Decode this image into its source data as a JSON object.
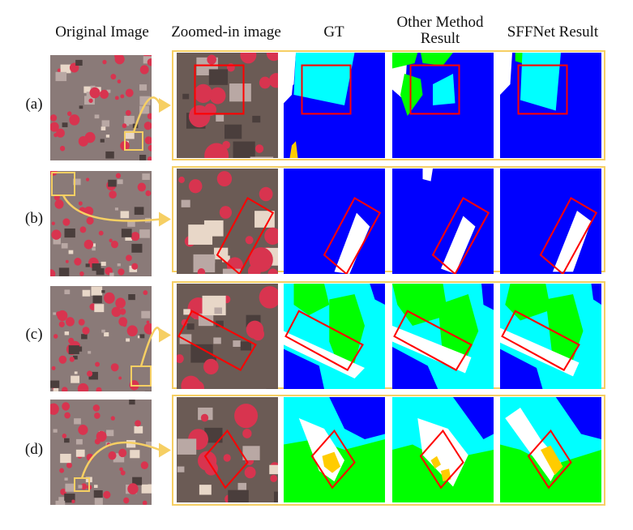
{
  "headers": {
    "original": "Original Image",
    "zoomed": "Zoomed-in image",
    "gt": "GT",
    "other": "Other Method Result",
    "sffnet": "SFFNet Result"
  },
  "rows": [
    {
      "label": "(a)"
    },
    {
      "label": "(b)"
    },
    {
      "label": "(c)"
    },
    {
      "label": "(d)"
    }
  ],
  "colors": {
    "impervious": "#ffffff",
    "building": "#0000ff",
    "low_vegetation": "#00ffff",
    "tree": "#00ff00",
    "car": "#ffcc00",
    "highlight_box": "#ff0000",
    "panel_border": "#f6cf63",
    "arrow": "#f6cf63"
  }
}
